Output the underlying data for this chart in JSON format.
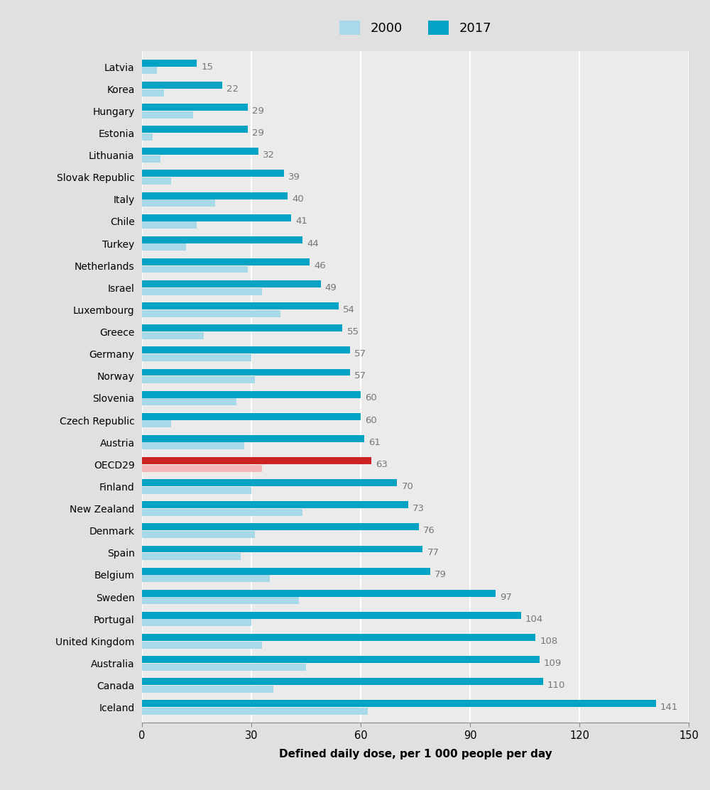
{
  "countries": [
    "Latvia",
    "Korea",
    "Hungary",
    "Estonia",
    "Lithuania",
    "Slovak Republic",
    "Italy",
    "Chile",
    "Turkey",
    "Netherlands",
    "Israel",
    "Luxembourg",
    "Greece",
    "Germany",
    "Norway",
    "Slovenia",
    "Czech Republic",
    "Austria",
    "OECD29",
    "Finland",
    "New Zealand",
    "Denmark",
    "Spain",
    "Belgium",
    "Sweden",
    "Portugal",
    "United Kingdom",
    "Australia",
    "Canada",
    "Iceland"
  ],
  "values_2017": [
    15,
    22,
    29,
    29,
    32,
    39,
    40,
    41,
    44,
    46,
    49,
    54,
    55,
    57,
    57,
    60,
    60,
    61,
    63,
    70,
    73,
    76,
    77,
    79,
    97,
    104,
    108,
    109,
    110,
    141
  ],
  "values_2000": [
    4,
    6,
    14,
    3,
    5,
    8,
    20,
    15,
    12,
    29,
    33,
    38,
    17,
    30,
    31,
    26,
    8,
    28,
    33,
    30,
    44,
    31,
    27,
    35,
    43,
    30,
    33,
    45,
    36,
    62
  ],
  "color_2017": "#00a3c4",
  "color_2000": "#a8d9e8",
  "color_2017_oecd": "#cc2222",
  "color_2000_oecd": "#f5b8b8",
  "background_color": "#e0e0e0",
  "plot_bg_color": "#ebebeb",
  "xlabel": "Defined daily dose, per 1 000 people per day",
  "xlim": [
    0,
    150
  ],
  "xticks": [
    0,
    30,
    60,
    90,
    120,
    150
  ],
  "value_label_color": "#777777",
  "bar_height": 0.32,
  "bar_gap": 0.02
}
